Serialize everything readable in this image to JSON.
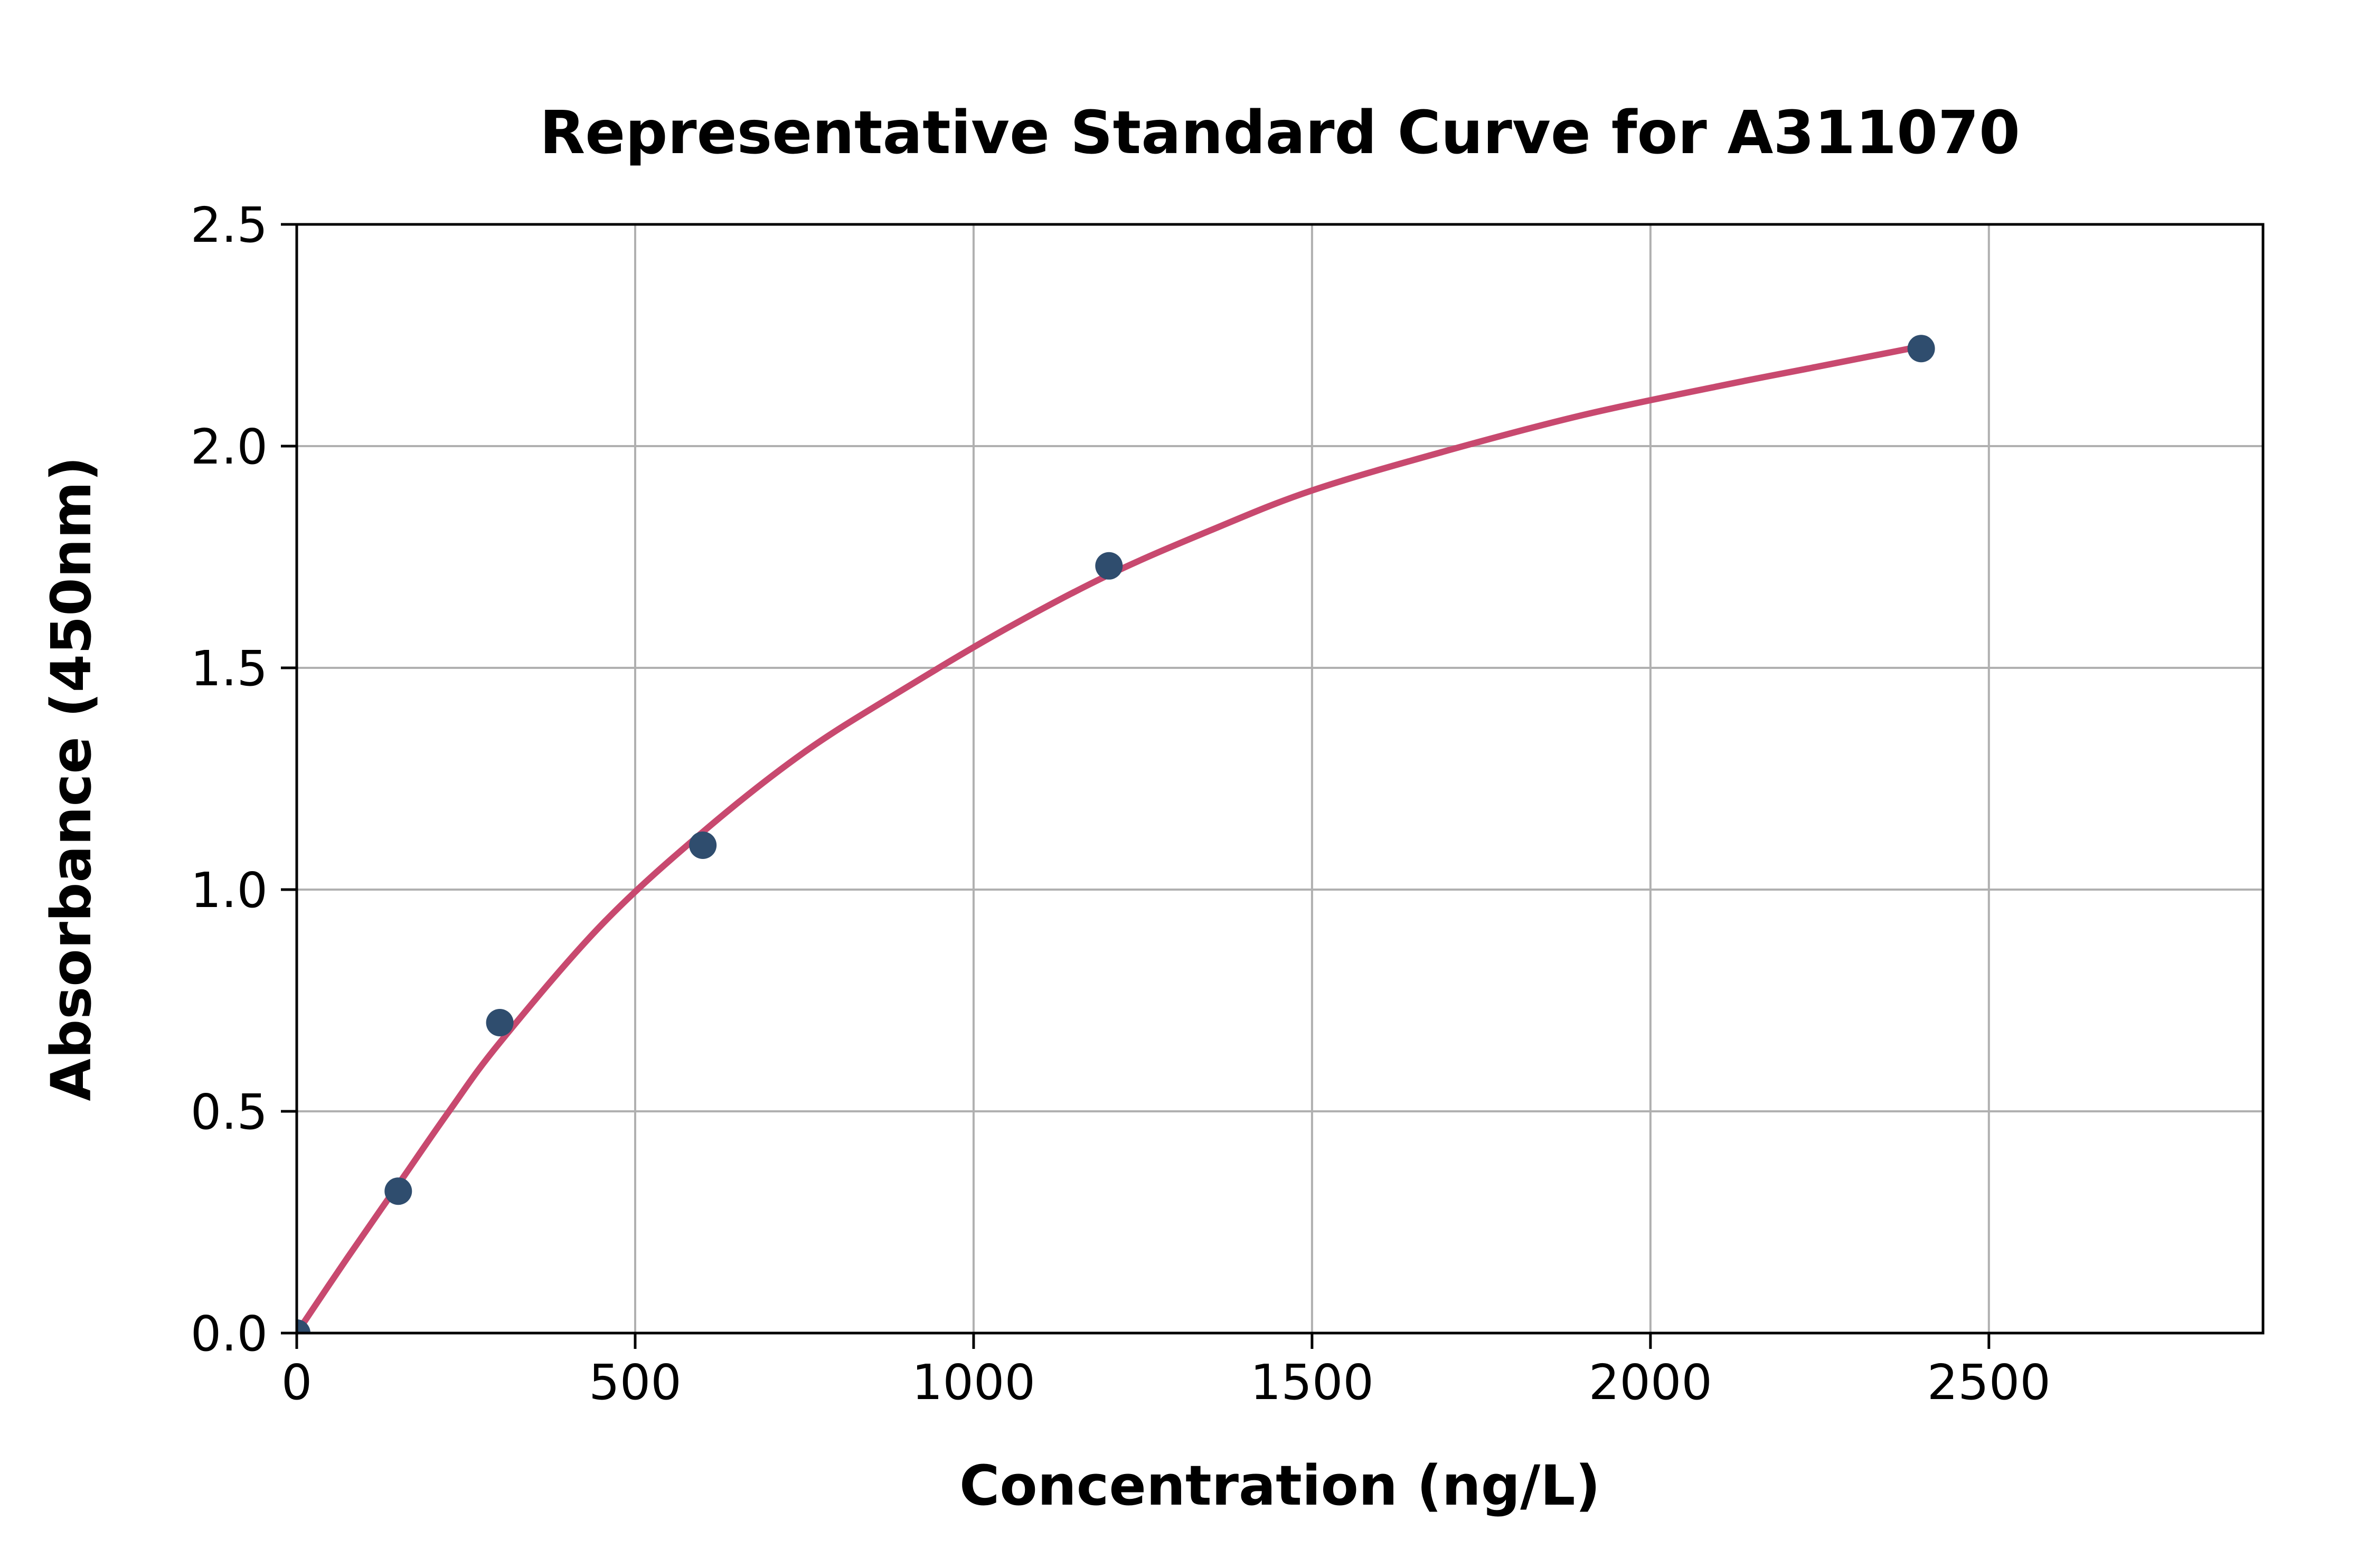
{
  "chart_data": {
    "type": "scatter",
    "title": "Representative Standard Curve for A311070",
    "xlabel": "Concentration (ng/L)",
    "ylabel": "Absorbance (450nm)",
    "xlim": [
      0,
      2905
    ],
    "ylim": [
      0,
      2.5
    ],
    "x_ticks": [
      0,
      500,
      1000,
      1500,
      2000,
      2500
    ],
    "x_tick_labels": [
      "0",
      "500",
      "1000",
      "1500",
      "2000",
      "2500"
    ],
    "y_ticks": [
      0,
      0.5,
      1.0,
      1.5,
      2.0,
      2.5
    ],
    "y_tick_labels": [
      "0.0",
      "0.5",
      "1.0",
      "1.5",
      "2.0",
      "2.5"
    ],
    "grid": true,
    "legend_position": "none",
    "series": [
      {
        "name": "standard-points",
        "type": "scatter",
        "points": [
          [
            0,
            0.0
          ],
          [
            150,
            0.32
          ],
          [
            300,
            0.7
          ],
          [
            600,
            1.1
          ],
          [
            1200,
            1.73
          ],
          [
            2400,
            2.22
          ]
        ]
      },
      {
        "name": "fitted-curve",
        "type": "line",
        "points": [
          [
            0,
            0.0
          ],
          [
            75,
            0.17
          ],
          [
            150,
            0.335
          ],
          [
            225,
            0.5
          ],
          [
            300,
            0.655
          ],
          [
            450,
            0.92
          ],
          [
            600,
            1.13
          ],
          [
            750,
            1.31
          ],
          [
            900,
            1.455
          ],
          [
            1050,
            1.59
          ],
          [
            1200,
            1.71
          ],
          [
            1350,
            1.81
          ],
          [
            1500,
            1.9
          ],
          [
            1700,
            1.99
          ],
          [
            1900,
            2.07
          ],
          [
            2100,
            2.135
          ],
          [
            2250,
            2.18
          ],
          [
            2400,
            2.225
          ]
        ]
      }
    ],
    "colors": {
      "point": "#2F4D6E",
      "curve": "#C8496F",
      "grid": "#B0B0B0",
      "axis": "#000000",
      "background": "#FFFFFF"
    }
  }
}
